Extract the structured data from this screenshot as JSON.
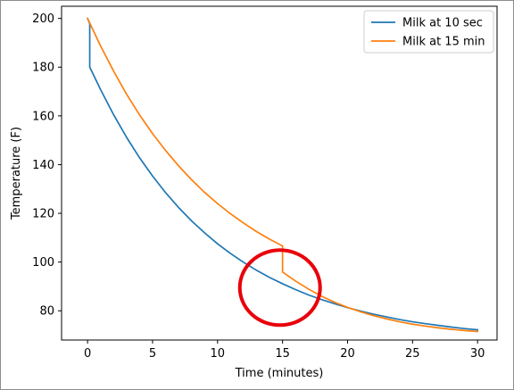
{
  "chart_data": {
    "type": "line",
    "title": "",
    "xlabel": "Time (minutes)",
    "ylabel": "Temperature (F)",
    "xlim": [
      -2.0,
      31.5
    ],
    "ylim": [
      68.0,
      205.0
    ],
    "xticks": [
      0,
      5,
      10,
      15,
      20,
      25,
      30
    ],
    "yticks": [
      80,
      100,
      120,
      140,
      160,
      180,
      200
    ],
    "xtick_labels": [
      "0",
      "5",
      "10",
      "15",
      "20",
      "25",
      "30"
    ],
    "ytick_labels": [
      "80",
      "100",
      "120",
      "140",
      "160",
      "180",
      "200"
    ],
    "grid": false,
    "legend_position": "top-right",
    "series": [
      {
        "name": "Milk at 10 sec",
        "color": "#1f77b4",
        "x": [
          0,
          0.1667,
          0.1667,
          1,
          2,
          3,
          4,
          5,
          6,
          7,
          8,
          9,
          10,
          11,
          12,
          13,
          14,
          15,
          16,
          17,
          18,
          19,
          20,
          21,
          22,
          23,
          24,
          25,
          26,
          27,
          28,
          29,
          30
        ],
        "y": [
          200,
          197.8,
          180,
          170.8,
          160.5,
          151.2,
          142.8,
          135.3,
          128.5,
          122.4,
          116.9,
          112.0,
          107.5,
          103.5,
          99.9,
          96.6,
          93.7,
          91.1,
          88.7,
          86.5,
          84.6,
          82.9,
          81.3,
          79.9,
          78.6,
          77.5,
          76.4,
          75.5,
          74.7,
          74.0,
          73.3,
          72.7,
          72.2
        ]
      },
      {
        "name": "Milk at 15 min",
        "color": "#ff7f0e",
        "x": [
          0,
          1,
          2,
          3,
          4,
          5,
          6,
          7,
          8,
          9,
          10,
          11,
          12,
          13,
          14,
          15,
          15,
          16,
          17,
          18,
          19,
          20,
          21,
          22,
          23,
          24,
          25,
          26,
          27,
          28,
          29,
          30
        ],
        "y": [
          200,
          188.7,
          178.4,
          168.9,
          160.4,
          152.7,
          145.8,
          139.5,
          133.8,
          128.6,
          124.0,
          119.8,
          116.0,
          112.5,
          109.4,
          106.6,
          95.9,
          92.2,
          88.9,
          86.0,
          83.5,
          81.4,
          79.6,
          78.0,
          76.7,
          75.5,
          74.5,
          73.7,
          73.0,
          72.4,
          71.9,
          71.5
        ]
      }
    ],
    "annotations": [
      {
        "type": "circle",
        "color": "#e8000b",
        "center": [
          14.8,
          89.5
        ],
        "note": ""
      }
    ]
  }
}
